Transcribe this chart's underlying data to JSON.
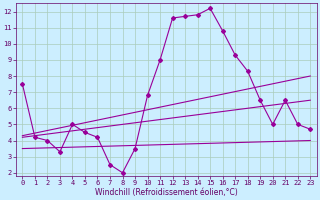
{
  "xlabel": "Windchill (Refroidissement éolien,°C)",
  "bg_color": "#cceeff",
  "grid_color": "#aaccbb",
  "line_color": "#990099",
  "xlim": [
    -0.5,
    23.5
  ],
  "ylim": [
    1.8,
    12.5
  ],
  "yticks": [
    2,
    3,
    4,
    5,
    6,
    7,
    8,
    9,
    10,
    11,
    12
  ],
  "xticks": [
    0,
    1,
    2,
    3,
    4,
    5,
    6,
    7,
    8,
    9,
    10,
    11,
    12,
    13,
    14,
    15,
    16,
    17,
    18,
    19,
    20,
    21,
    22,
    23
  ],
  "line1_x": [
    0,
    1,
    2,
    3,
    4,
    5,
    6,
    7,
    8,
    9,
    10,
    11,
    12,
    13,
    14,
    15,
    16,
    17,
    18,
    19,
    20,
    21,
    22,
    23
  ],
  "line1_y": [
    7.5,
    4.2,
    4.0,
    3.3,
    5.0,
    4.5,
    4.2,
    2.5,
    2.0,
    3.5,
    6.8,
    9.0,
    11.6,
    11.7,
    11.8,
    12.2,
    10.8,
    9.3,
    8.3,
    6.5,
    5.0,
    6.5,
    5.0,
    4.7
  ],
  "line2_x": [
    0,
    23
  ],
  "line2_y": [
    4.3,
    8.0
  ],
  "line3_x": [
    0,
    23
  ],
  "line3_y": [
    4.2,
    6.5
  ],
  "line4_x": [
    0,
    23
  ],
  "line4_y": [
    3.5,
    4.0
  ],
  "markersize": 2.0,
  "linewidth": 0.8,
  "font_color": "#660066",
  "tick_fontsize": 5.0,
  "label_fontsize": 5.5
}
